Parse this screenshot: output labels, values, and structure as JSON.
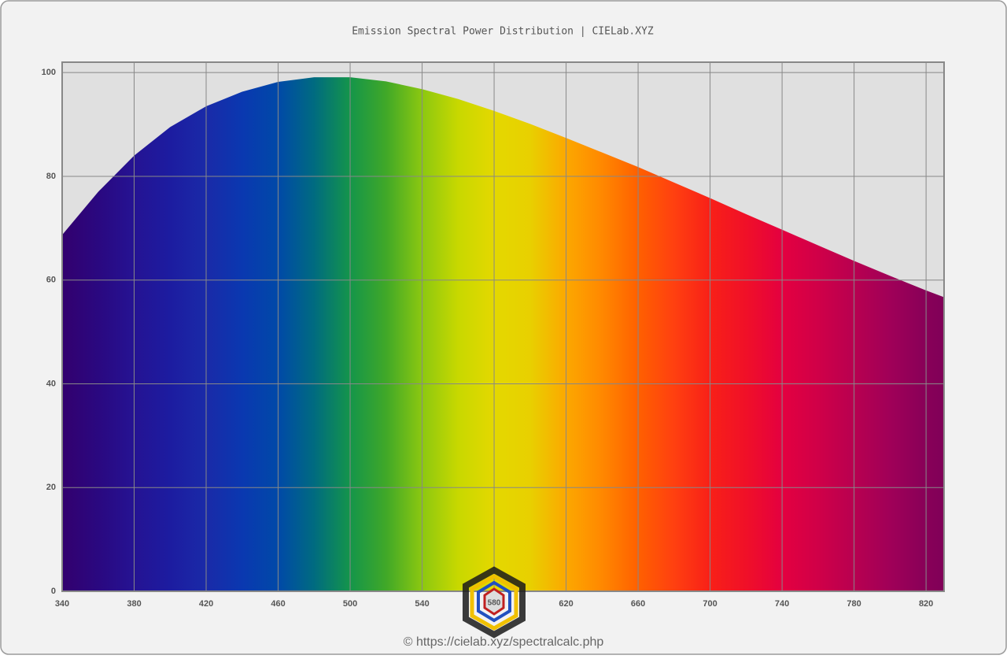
{
  "chart_data": {
    "type": "area",
    "title": "Emission Spectral Power Distribution  |  CIELab.XYZ",
    "x": [
      340,
      360,
      380,
      400,
      420,
      440,
      460,
      480,
      500,
      520,
      540,
      560,
      580,
      600,
      620,
      640,
      660,
      680,
      700,
      720,
      740,
      760,
      780,
      800,
      820,
      830
    ],
    "series": [
      {
        "values": [
          68.7,
          77,
          84,
          89.5,
          93.5,
          96.3,
          98.2,
          99.1,
          99.1,
          98.3,
          96.8,
          94.9,
          92.6,
          90.1,
          87.4,
          84.6,
          81.8,
          78.8,
          75.8,
          72.7,
          69.7,
          66.7,
          63.7,
          60.8,
          58,
          56.7
        ],
        "colors": [
          "#33006e",
          "#2a0880",
          "#251393",
          "#1c1ca0",
          "#1a2aa8",
          "#0a38b0",
          "#0049a8",
          "#006b80",
          "#14954a",
          "#40a828",
          "#8cc810",
          "#c8d800",
          "#e4d800",
          "#e8d000",
          "#fca800",
          "#ff8800",
          "#ff6000",
          "#ff4010",
          "#f82018",
          "#f01028",
          "#e40040",
          "#d00048",
          "#b80050",
          "#a00058",
          "#880058",
          "#800058"
        ]
      }
    ],
    "xlim": [
      340,
      830
    ],
    "xticks": [
      340,
      380,
      420,
      460,
      500,
      540,
      580,
      620,
      660,
      700,
      740,
      780,
      820
    ],
    "ylim": [
      0,
      102
    ],
    "yticks": [
      0,
      20,
      40,
      60,
      80,
      100
    ],
    "grid": true,
    "logo_label": "580",
    "source": "© https://cielab.xyz/spectralcalc.php"
  }
}
